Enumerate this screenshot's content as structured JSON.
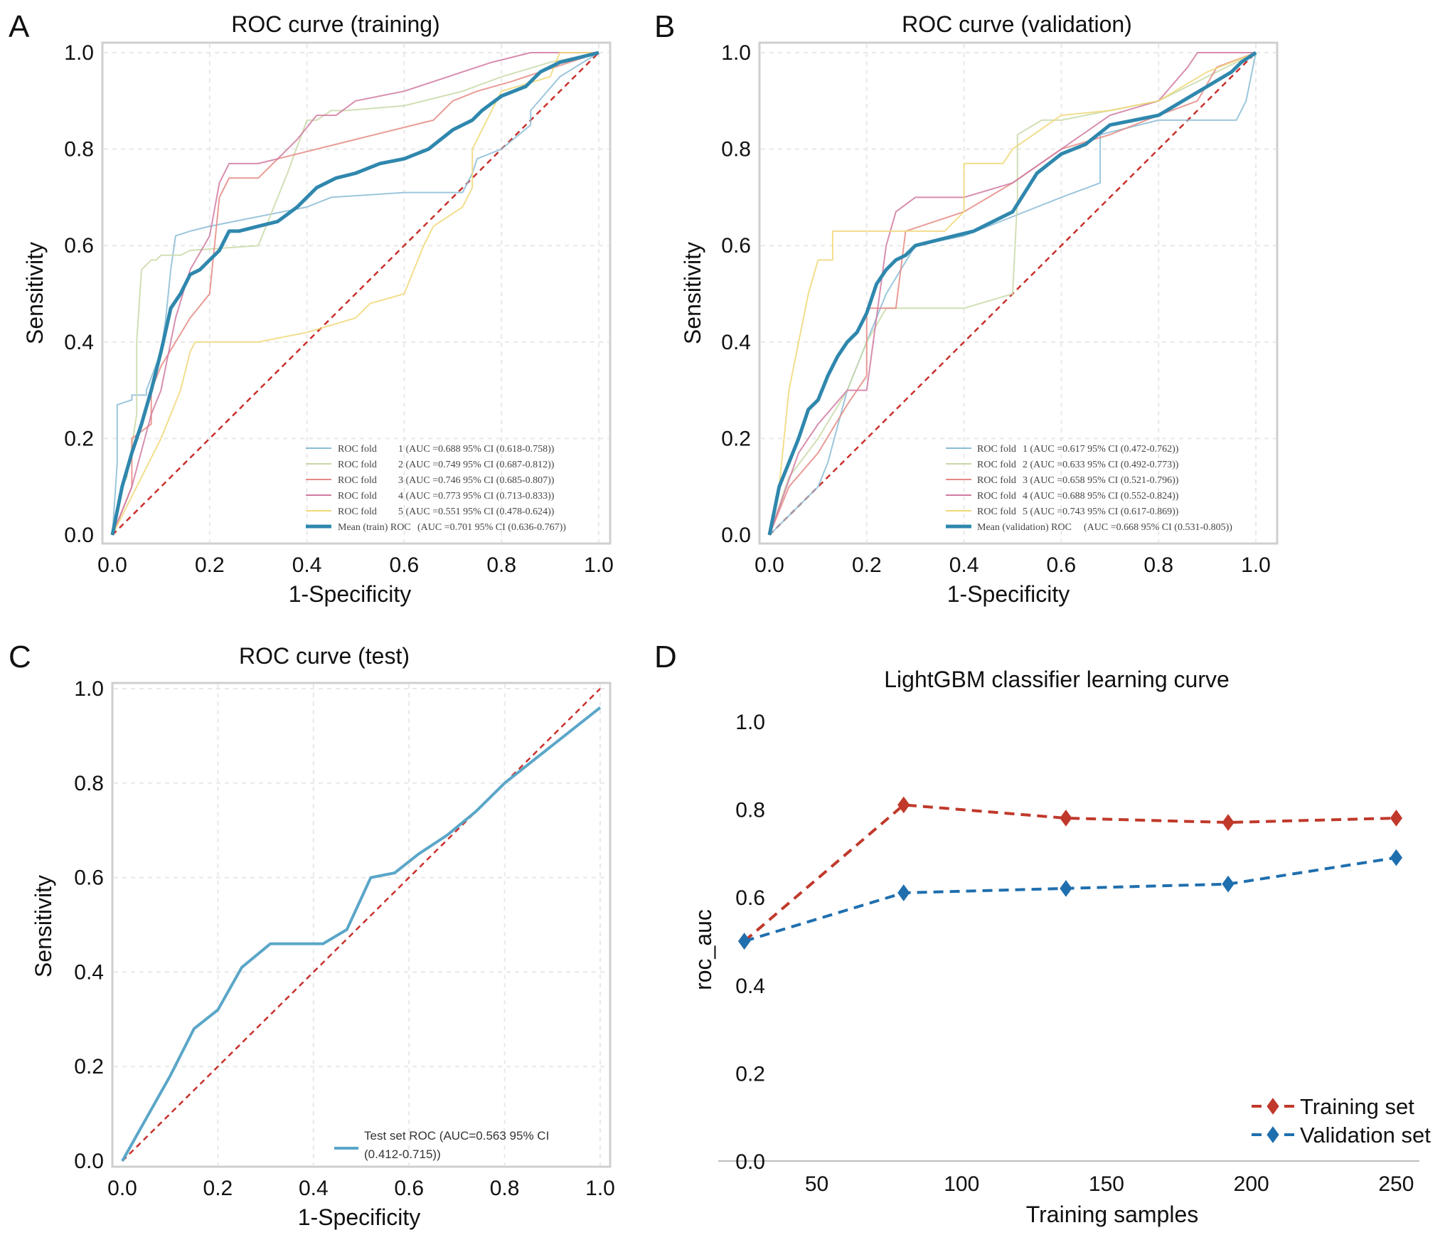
{
  "panels": {
    "A": {
      "letter": "A"
    },
    "B": {
      "letter": "B"
    },
    "C": {
      "letter": "C"
    },
    "D": {
      "letter": "D"
    }
  },
  "colors": {
    "fold1": "#8bbcd6",
    "fold2": "#c9d9a8",
    "fold3": "#e58a84",
    "fold4": "#d07aa1",
    "fold5": "#f0d878",
    "mean": "#2f87ad",
    "test": "#5aa6c8",
    "diag": "#c8302b",
    "training": "#c0392b",
    "validation": "#1f6fae"
  },
  "chart_data": [
    {
      "id": "A",
      "type": "line",
      "title": "ROC curve (training)",
      "xlabel": "1-Specificity",
      "ylabel": "Sensitivity",
      "xlim": [
        0,
        1
      ],
      "ylim": [
        0,
        1
      ],
      "xticks": [
        "0.0",
        "0.2",
        "0.4",
        "0.6",
        "0.8",
        "1.0"
      ],
      "yticks": [
        "0.0",
        "0.2",
        "0.4",
        "0.6",
        "0.8",
        "1.0"
      ],
      "grid": true,
      "legend_position": "bottom-right",
      "series": [
        {
          "key": "fold1",
          "legend_left": "ROC fold",
          "legend_right": "1 (AUC =0.688 95% CI (0.618-0.758))",
          "width": 2,
          "x": [
            0,
            0.01,
            0.01,
            0.04,
            0.04,
            0.07,
            0.07,
            0.1,
            0.11,
            0.12,
            0.13,
            0.16,
            0.2,
            0.3,
            0.4,
            0.45,
            0.6,
            0.72,
            0.74,
            0.75,
            0.8,
            0.86,
            0.86,
            0.92,
            1
          ],
          "y": [
            0,
            0.15,
            0.27,
            0.28,
            0.29,
            0.29,
            0.3,
            0.38,
            0.45,
            0.55,
            0.62,
            0.63,
            0.64,
            0.66,
            0.68,
            0.7,
            0.71,
            0.71,
            0.75,
            0.78,
            0.8,
            0.85,
            0.88,
            0.95,
            1
          ]
        },
        {
          "key": "fold2",
          "legend_left": "ROC fold",
          "legend_right": "2 (AUC =0.749 95% CI (0.687-0.812))",
          "width": 2,
          "x": [
            0,
            0.02,
            0.03,
            0.05,
            0.05,
            0.06,
            0.08,
            0.09,
            0.1,
            0.14,
            0.16,
            0.3,
            0.36,
            0.4,
            0.42,
            0.45,
            0.48,
            0.6,
            0.72,
            0.8,
            0.9,
            1
          ],
          "y": [
            0,
            0.1,
            0.12,
            0.25,
            0.4,
            0.55,
            0.57,
            0.57,
            0.58,
            0.58,
            0.59,
            0.6,
            0.75,
            0.86,
            0.86,
            0.88,
            0.88,
            0.89,
            0.92,
            0.95,
            0.98,
            1
          ]
        },
        {
          "key": "fold3",
          "legend_left": "ROC fold",
          "legend_right": "3 (AUC =0.746 95% CI (0.685-0.807))",
          "width": 2,
          "x": [
            0,
            0.04,
            0.04,
            0.08,
            0.08,
            0.1,
            0.13,
            0.16,
            0.2,
            0.22,
            0.24,
            0.26,
            0.3,
            0.34,
            0.5,
            0.66,
            0.7,
            0.75,
            0.82,
            0.88,
            0.94,
            1
          ],
          "y": [
            0,
            0.1,
            0.2,
            0.23,
            0.3,
            0.35,
            0.4,
            0.45,
            0.5,
            0.7,
            0.74,
            0.74,
            0.74,
            0.78,
            0.82,
            0.86,
            0.9,
            0.92,
            0.94,
            0.96,
            0.98,
            1
          ]
        },
        {
          "key": "fold4",
          "legend_left": "ROC fold",
          "legend_right": "4 (AUC =0.773 95% CI (0.713-0.833))",
          "width": 2,
          "x": [
            0,
            0.04,
            0.08,
            0.1,
            0.13,
            0.16,
            0.2,
            0.22,
            0.24,
            0.3,
            0.34,
            0.38,
            0.42,
            0.46,
            0.5,
            0.6,
            0.66,
            0.72,
            0.78,
            0.86,
            0.92,
            1
          ],
          "y": [
            0,
            0.1,
            0.25,
            0.3,
            0.45,
            0.55,
            0.62,
            0.73,
            0.77,
            0.77,
            0.78,
            0.82,
            0.87,
            0.87,
            0.9,
            0.92,
            0.94,
            0.96,
            0.98,
            1.0,
            1.0,
            1
          ]
        },
        {
          "key": "fold5",
          "legend_left": "ROC fold",
          "legend_right": "5 (AUC =0.551 95% CI (0.478-0.624))",
          "width": 2,
          "x": [
            0,
            0.05,
            0.1,
            0.14,
            0.16,
            0.17,
            0.2,
            0.3,
            0.4,
            0.5,
            0.53,
            0.6,
            0.64,
            0.66,
            0.72,
            0.74,
            0.74,
            0.8,
            0.9,
            0.92,
            1
          ],
          "y": [
            0,
            0.1,
            0.2,
            0.3,
            0.38,
            0.4,
            0.4,
            0.4,
            0.42,
            0.45,
            0.48,
            0.5,
            0.6,
            0.64,
            0.68,
            0.72,
            0.8,
            0.92,
            0.95,
            1.0,
            1
          ]
        },
        {
          "key": "mean",
          "legend_left": "Mean (train) ROC",
          "legend_right": "(AUC =0.701 95% CI (0.636-0.767))",
          "width": 5,
          "x": [
            0,
            0.02,
            0.04,
            0.06,
            0.08,
            0.1,
            0.12,
            0.14,
            0.16,
            0.18,
            0.2,
            0.22,
            0.24,
            0.26,
            0.3,
            0.34,
            0.38,
            0.42,
            0.46,
            0.5,
            0.55,
            0.6,
            0.65,
            0.7,
            0.74,
            0.76,
            0.8,
            0.85,
            0.88,
            0.92,
            0.96,
            1
          ],
          "y": [
            0,
            0.1,
            0.17,
            0.23,
            0.3,
            0.38,
            0.47,
            0.5,
            0.54,
            0.55,
            0.57,
            0.59,
            0.63,
            0.63,
            0.64,
            0.65,
            0.68,
            0.72,
            0.74,
            0.75,
            0.77,
            0.78,
            0.8,
            0.84,
            0.86,
            0.88,
            0.91,
            0.93,
            0.96,
            0.98,
            0.99,
            1
          ]
        }
      ]
    },
    {
      "id": "B",
      "type": "line",
      "title": "ROC curve (validation)",
      "xlabel": "1-Specificity",
      "ylabel": "Sensitivity",
      "xlim": [
        0,
        1
      ],
      "ylim": [
        0,
        1
      ],
      "xticks": [
        "0.0",
        "0.2",
        "0.4",
        "0.6",
        "0.8",
        "1.0"
      ],
      "yticks": [
        "0.0",
        "0.2",
        "0.4",
        "0.6",
        "0.8",
        "1.0"
      ],
      "grid": true,
      "legend_position": "bottom-right",
      "series": [
        {
          "key": "fold1",
          "legend_left": "ROC fold",
          "legend_right": "1 (AUC =0.617 95% CI (0.472-0.762))",
          "width": 2,
          "x": [
            0,
            0.05,
            0.1,
            0.12,
            0.16,
            0.2,
            0.24,
            0.3,
            0.4,
            0.5,
            0.6,
            0.68,
            0.68,
            0.8,
            0.9,
            0.96,
            0.98,
            1
          ],
          "y": [
            0,
            0.05,
            0.1,
            0.15,
            0.3,
            0.4,
            0.5,
            0.6,
            0.62,
            0.66,
            0.7,
            0.73,
            0.83,
            0.86,
            0.86,
            0.86,
            0.9,
            1
          ]
        },
        {
          "key": "fold2",
          "legend_left": "ROC fold",
          "legend_right": "2 (AUC =0.633 95% CI (0.492-0.773))",
          "width": 2,
          "x": [
            0,
            0.04,
            0.1,
            0.16,
            0.2,
            0.24,
            0.3,
            0.4,
            0.5,
            0.51,
            0.51,
            0.56,
            0.6,
            0.7,
            0.8,
            0.9,
            1
          ],
          "y": [
            0,
            0.12,
            0.2,
            0.3,
            0.4,
            0.47,
            0.47,
            0.47,
            0.5,
            0.7,
            0.83,
            0.86,
            0.86,
            0.88,
            0.9,
            0.95,
            1
          ]
        },
        {
          "key": "fold3",
          "legend_left": "ROC fold",
          "legend_right": "3 (AUC =0.658 95% CI (0.521-0.796))",
          "width": 2,
          "x": [
            0,
            0.04,
            0.1,
            0.16,
            0.2,
            0.2,
            0.26,
            0.28,
            0.4,
            0.5,
            0.6,
            0.7,
            0.8,
            0.88,
            0.92,
            1
          ],
          "y": [
            0,
            0.1,
            0.17,
            0.27,
            0.33,
            0.47,
            0.47,
            0.63,
            0.67,
            0.73,
            0.8,
            0.83,
            0.87,
            0.9,
            0.97,
            1
          ]
        },
        {
          "key": "fold4",
          "legend_left": "ROC fold",
          "legend_right": "4 (AUC =0.688 95% CI (0.552-0.824))",
          "width": 2,
          "x": [
            0,
            0.06,
            0.1,
            0.16,
            0.2,
            0.24,
            0.26,
            0.3,
            0.4,
            0.5,
            0.6,
            0.7,
            0.8,
            0.86,
            0.88,
            0.96,
            1
          ],
          "y": [
            0,
            0.17,
            0.23,
            0.3,
            0.3,
            0.6,
            0.67,
            0.7,
            0.7,
            0.73,
            0.8,
            0.87,
            0.9,
            0.97,
            1.0,
            1.0,
            1
          ]
        },
        {
          "key": "fold5",
          "legend_left": "ROC fold",
          "legend_right": "5 (AUC =0.743 95% CI (0.617-0.869))",
          "width": 2,
          "x": [
            0,
            0.02,
            0.04,
            0.08,
            0.1,
            0.13,
            0.13,
            0.2,
            0.36,
            0.4,
            0.4,
            0.48,
            0.5,
            0.6,
            0.7,
            0.8,
            0.9,
            1
          ],
          "y": [
            0,
            0.1,
            0.3,
            0.5,
            0.57,
            0.57,
            0.63,
            0.63,
            0.63,
            0.67,
            0.77,
            0.77,
            0.8,
            0.87,
            0.88,
            0.9,
            0.96,
            1
          ]
        },
        {
          "key": "mean",
          "legend_left": "Mean (validation) ROC",
          "legend_right": "(AUC =0.668 95% CI (0.531-0.805))",
          "width": 5,
          "x": [
            0,
            0.02,
            0.04,
            0.06,
            0.08,
            0.1,
            0.12,
            0.14,
            0.16,
            0.18,
            0.2,
            0.22,
            0.24,
            0.26,
            0.28,
            0.3,
            0.34,
            0.38,
            0.42,
            0.46,
            0.5,
            0.55,
            0.6,
            0.65,
            0.7,
            0.75,
            0.8,
            0.85,
            0.9,
            0.95,
            0.97,
            1
          ],
          "y": [
            0,
            0.1,
            0.15,
            0.2,
            0.26,
            0.28,
            0.33,
            0.37,
            0.4,
            0.42,
            0.46,
            0.52,
            0.55,
            0.57,
            0.58,
            0.6,
            0.61,
            0.62,
            0.63,
            0.65,
            0.67,
            0.75,
            0.79,
            0.81,
            0.85,
            0.86,
            0.87,
            0.9,
            0.93,
            0.96,
            0.98,
            1
          ]
        }
      ]
    },
    {
      "id": "C",
      "type": "line",
      "title": "ROC curve (test)",
      "xlabel": "1-Specificity",
      "ylabel": "Sensitivity",
      "xlim": [
        0,
        1
      ],
      "ylim": [
        0,
        1
      ],
      "xticks": [
        "0.0",
        "0.2",
        "0.4",
        "0.6",
        "0.8",
        "1.0"
      ],
      "yticks": [
        "0.0",
        "0.2",
        "0.4",
        "0.6",
        "0.8",
        "1.0"
      ],
      "grid": true,
      "legend_position": "bottom-right",
      "series": [
        {
          "key": "test",
          "legend_line1": "Test set ROC (AUC=0.563 95% CI",
          "legend_line2": "(0.412-0.715))",
          "width": 4,
          "x": [
            0,
            0.05,
            0.1,
            0.15,
            0.2,
            0.25,
            0.31,
            0.42,
            0.47,
            0.52,
            0.57,
            0.62,
            0.68,
            0.74,
            0.8,
            0.9,
            1
          ],
          "y": [
            0,
            0.09,
            0.18,
            0.28,
            0.32,
            0.41,
            0.46,
            0.46,
            0.49,
            0.6,
            0.61,
            0.65,
            0.69,
            0.74,
            0.8,
            0.88,
            0.96
          ]
        }
      ]
    },
    {
      "id": "D",
      "type": "line",
      "title": "LightGBM classifier learning curve",
      "xlabel": "Training samples",
      "ylabel": "roc_auc",
      "xlim": [
        16,
        258
      ],
      "ylim": [
        0,
        1.05
      ],
      "xticks": [
        "50",
        "100",
        "150",
        "200",
        "250"
      ],
      "xtick_values": [
        50,
        100,
        150,
        200,
        250
      ],
      "yticks": [
        "0.0",
        "0.2",
        "0.4",
        "0.6",
        "0.8",
        "1.0"
      ],
      "grid": false,
      "legend_position": "bottom-right",
      "series": [
        {
          "key": "training",
          "name": "Training set",
          "x": [
            25,
            80,
            136,
            192,
            250
          ],
          "y": [
            0.5,
            0.81,
            0.78,
            0.77,
            0.78
          ]
        },
        {
          "key": "validation",
          "name": "Validation set",
          "x": [
            25,
            80,
            136,
            192,
            250
          ],
          "y": [
            0.5,
            0.61,
            0.62,
            0.63,
            0.69
          ]
        }
      ]
    }
  ]
}
